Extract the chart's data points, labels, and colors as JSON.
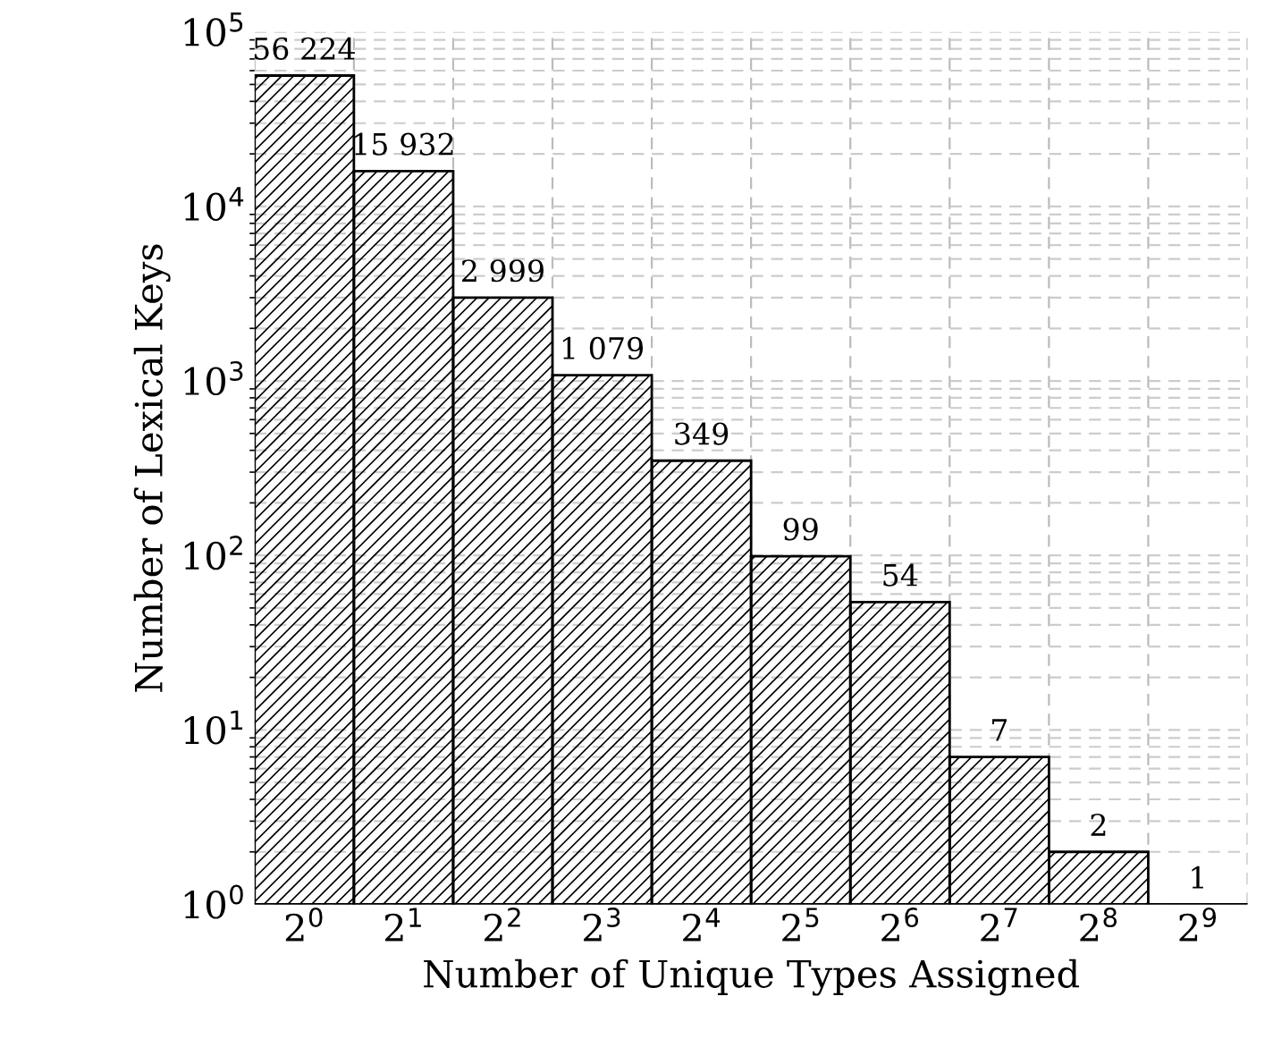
{
  "chart_data": {
    "type": "bar",
    "xlabel": "Number of Unique Types Assigned",
    "ylabel": "Number of Lexical Keys",
    "categories": [
      "2$^{0}$",
      "2$^{1}$",
      "2$^{2}$",
      "2$^{3}$",
      "2$^{4}$",
      "2$^{5}$",
      "2$^{6}$",
      "2$^{7}$",
      "2$^{8}$",
      "2$^{9}$"
    ],
    "values": [
      56224,
      15932,
      2999,
      1079,
      349,
      99,
      54,
      7,
      2,
      1
    ],
    "value_labels": [
      "56 224",
      "15 932",
      "2 999",
      "1 079",
      "349",
      "99",
      "54",
      "7",
      "2",
      "1"
    ],
    "color": "#000000",
    "log": "y",
    "ylim": [
      1,
      100000
    ],
    "yticks": [
      {
        "value": 1,
        "label": "10$^{0}$"
      },
      {
        "value": 10,
        "label": "10$^{1}$"
      },
      {
        "value": 100,
        "label": "10$^{2}$"
      },
      {
        "value": 1000,
        "label": "10$^{3}$"
      },
      {
        "value": 10000,
        "label": "10$^{4}$"
      },
      {
        "value": 100000,
        "label": "10$^{5}$"
      }
    ],
    "grid": true
  }
}
